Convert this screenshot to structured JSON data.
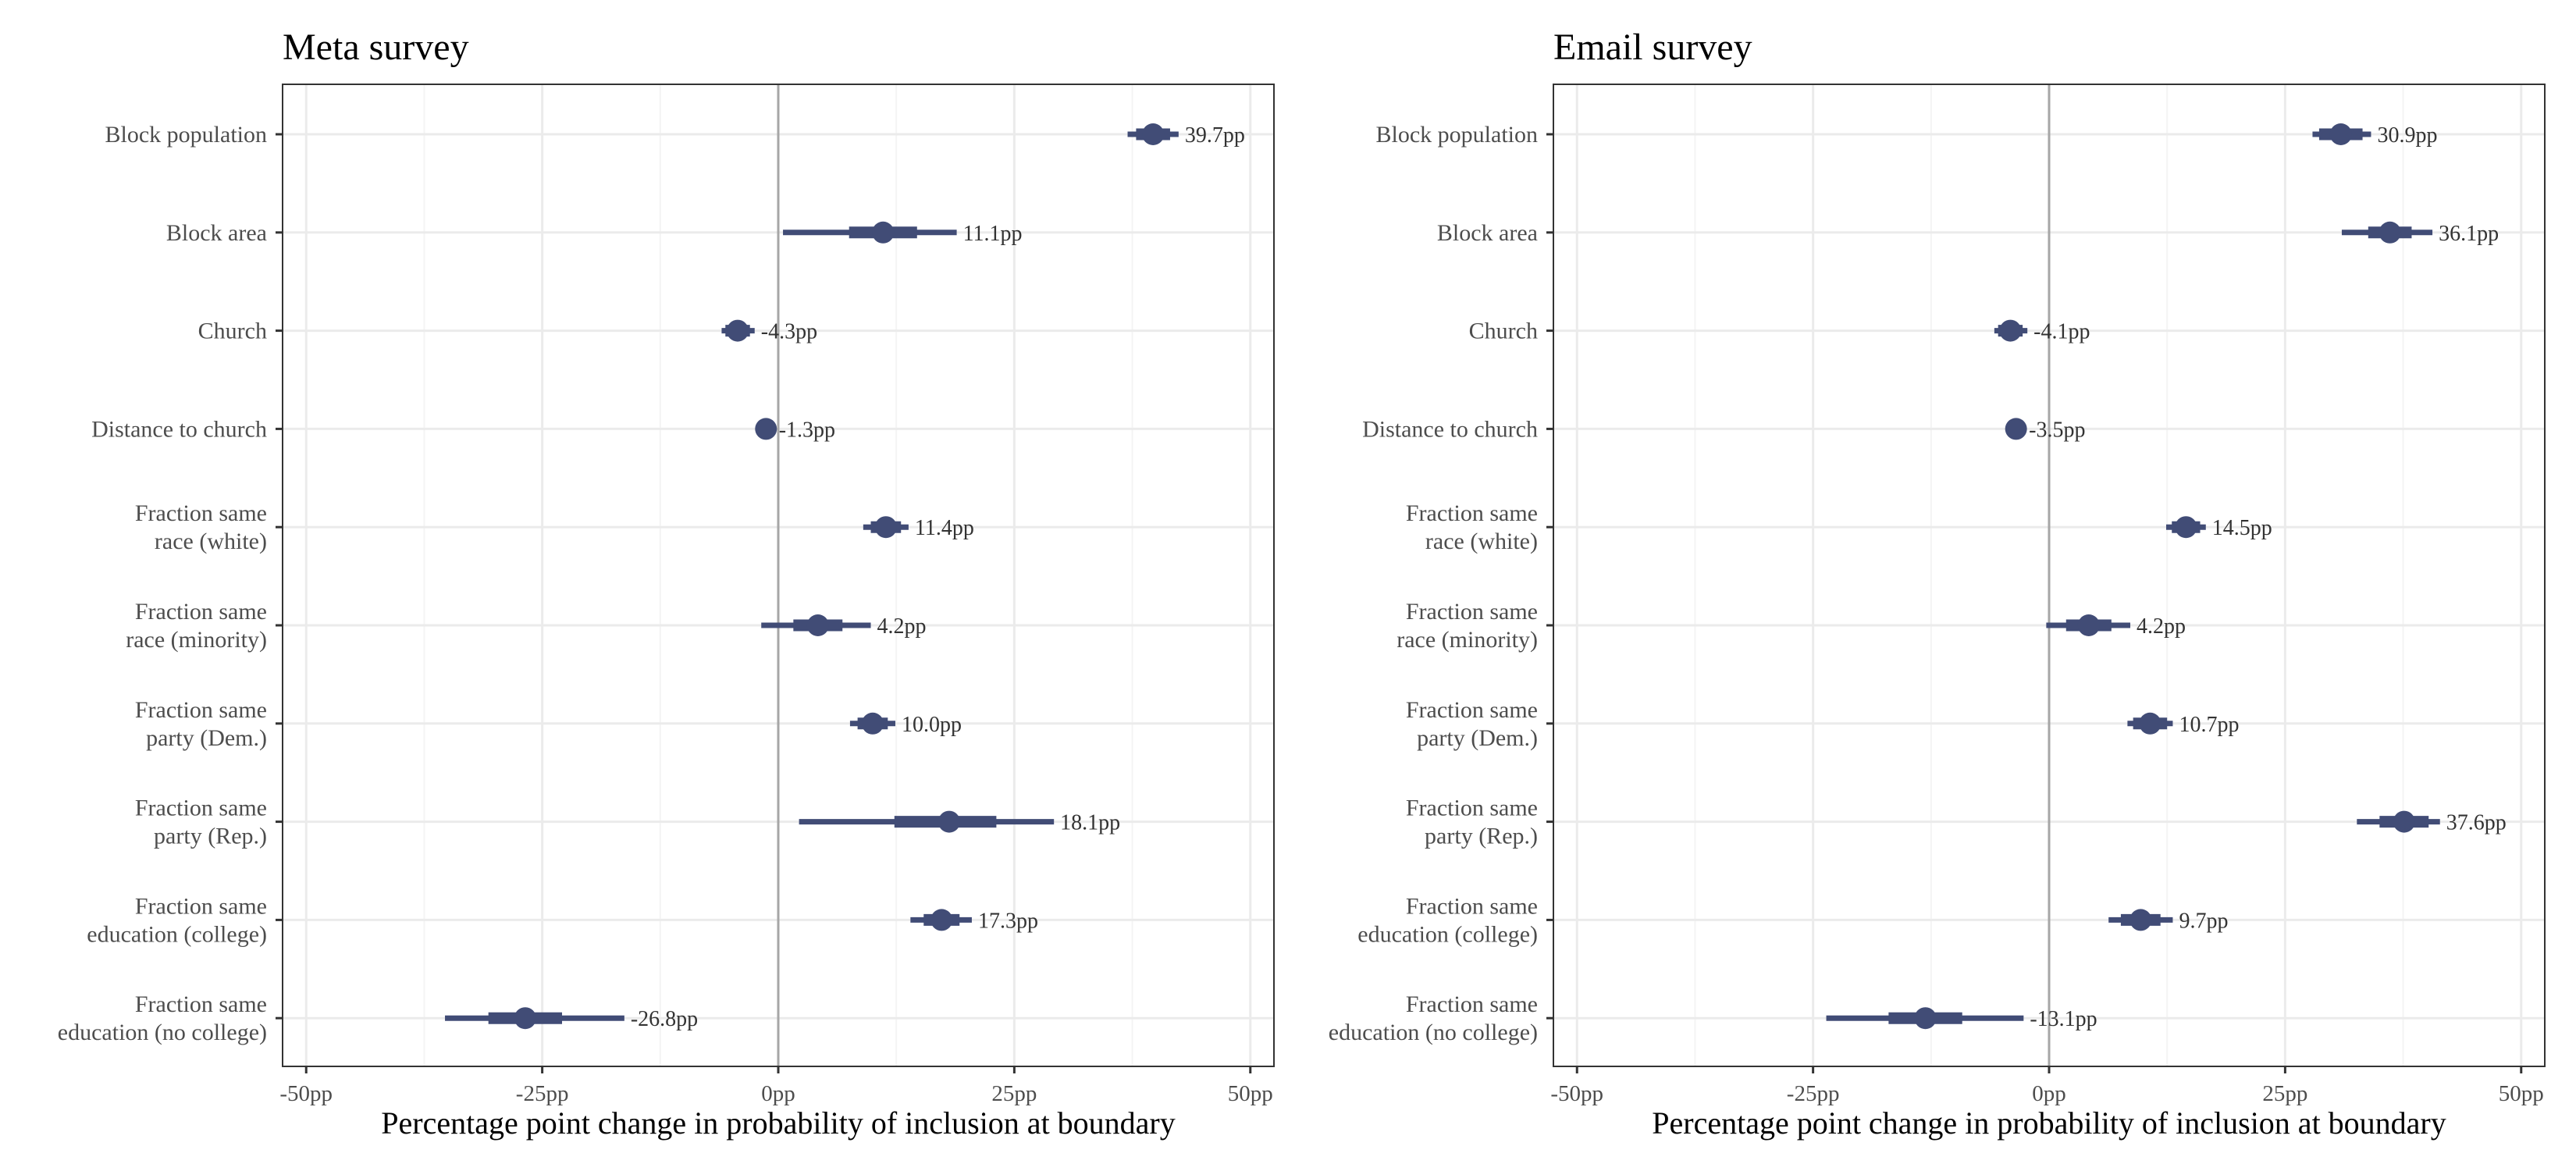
{
  "chart_data": [
    {
      "type": "dot-and-whisker",
      "title": "Meta survey",
      "xlabel": "Percentage point change in probability of inclusion at boundary",
      "xlim": [
        -52.5,
        52.5
      ],
      "xticks": [
        -50,
        -25,
        0,
        25,
        50
      ],
      "xtick_labels": [
        "-50pp",
        "-25pp",
        "0pp",
        "25pp",
        "50pp"
      ],
      "grid": true,
      "rows": [
        {
          "label": [
            "Block population"
          ],
          "estimate": 39.7,
          "ci_inner": [
            37.9,
            41.5
          ],
          "ci_outer": [
            37.0,
            42.4
          ],
          "value_label": "39.7pp"
        },
        {
          "label": [
            "Block area"
          ],
          "estimate": 11.1,
          "ci_inner": [
            7.5,
            14.7
          ],
          "ci_outer": [
            0.5,
            18.9
          ],
          "value_label": "11.1pp"
        },
        {
          "label": [
            "Church"
          ],
          "estimate": -4.3,
          "ci_inner": [
            -5.6,
            -3.0
          ],
          "ci_outer": [
            -6.0,
            -2.5
          ],
          "value_label": "-4.3pp"
        },
        {
          "label": [
            "Distance to church"
          ],
          "estimate": -1.3,
          "ci_inner": [
            -1.8,
            -0.8
          ],
          "ci_outer": [
            -2.0,
            -0.6
          ],
          "value_label": "-1.3pp"
        },
        {
          "label": [
            "Fraction same",
            "race (white)"
          ],
          "estimate": 11.4,
          "ci_inner": [
            9.8,
            13.0
          ],
          "ci_outer": [
            9.0,
            13.8
          ],
          "value_label": "11.4pp"
        },
        {
          "label": [
            "Fraction same",
            "race (minority)"
          ],
          "estimate": 4.2,
          "ci_inner": [
            1.6,
            6.8
          ],
          "ci_outer": [
            -1.8,
            9.8
          ],
          "value_label": "4.2pp"
        },
        {
          "label": [
            "Fraction same",
            "party (Dem.)"
          ],
          "estimate": 10.0,
          "ci_inner": [
            8.4,
            11.6
          ],
          "ci_outer": [
            7.6,
            12.4
          ],
          "value_label": "10.0pp"
        },
        {
          "label": [
            "Fraction same",
            "party (Rep.)"
          ],
          "estimate": 18.1,
          "ci_inner": [
            12.3,
            23.1
          ],
          "ci_outer": [
            2.2,
            29.2
          ],
          "value_label": "18.1pp"
        },
        {
          "label": [
            "Fraction same",
            "education (college)"
          ],
          "estimate": 17.3,
          "ci_inner": [
            15.4,
            19.2
          ],
          "ci_outer": [
            14.0,
            20.5
          ],
          "value_label": "17.3pp"
        },
        {
          "label": [
            "Fraction same",
            "education (no college)"
          ],
          "estimate": -26.8,
          "ci_inner": [
            -30.7,
            -22.9
          ],
          "ci_outer": [
            -35.3,
            -16.3
          ],
          "value_label": "-26.8pp"
        }
      ]
    },
    {
      "type": "dot-and-whisker",
      "title": "Email survey",
      "xlabel": "Percentage point change in probability of inclusion at boundary",
      "xlim": [
        -52.5,
        52.5
      ],
      "xticks": [
        -50,
        -25,
        0,
        25,
        50
      ],
      "xtick_labels": [
        "-50pp",
        "-25pp",
        "0pp",
        "25pp",
        "50pp"
      ],
      "grid": true,
      "rows": [
        {
          "label": [
            "Block population"
          ],
          "estimate": 30.9,
          "ci_inner": [
            28.6,
            33.2
          ],
          "ci_outer": [
            27.9,
            34.1
          ],
          "value_label": "30.9pp"
        },
        {
          "label": [
            "Block area"
          ],
          "estimate": 36.1,
          "ci_inner": [
            33.8,
            38.4
          ],
          "ci_outer": [
            31.0,
            40.6
          ],
          "value_label": "36.1pp"
        },
        {
          "label": [
            "Church"
          ],
          "estimate": -4.1,
          "ci_inner": [
            -5.4,
            -2.8
          ],
          "ci_outer": [
            -5.8,
            -2.3
          ],
          "value_label": "-4.1pp"
        },
        {
          "label": [
            "Distance to church"
          ],
          "estimate": -3.5,
          "ci_inner": [
            -4.0,
            -3.0
          ],
          "ci_outer": [
            -4.2,
            -2.8
          ],
          "value_label": "-3.5pp"
        },
        {
          "label": [
            "Fraction same",
            "race (white)"
          ],
          "estimate": 14.5,
          "ci_inner": [
            13.0,
            16.0
          ],
          "ci_outer": [
            12.4,
            16.6
          ],
          "value_label": "14.5pp"
        },
        {
          "label": [
            "Fraction same",
            "race (minority)"
          ],
          "estimate": 4.2,
          "ci_inner": [
            1.8,
            6.6
          ],
          "ci_outer": [
            -0.3,
            8.6
          ],
          "value_label": "4.2pp"
        },
        {
          "label": [
            "Fraction same",
            "party (Dem.)"
          ],
          "estimate": 10.7,
          "ci_inner": [
            8.9,
            12.5
          ],
          "ci_outer": [
            8.3,
            13.1
          ],
          "value_label": "10.7pp"
        },
        {
          "label": [
            "Fraction same",
            "party (Rep.)"
          ],
          "estimate": 37.6,
          "ci_inner": [
            35.0,
            40.2
          ],
          "ci_outer": [
            32.6,
            41.4
          ],
          "value_label": "37.6pp"
        },
        {
          "label": [
            "Fraction same",
            "education (college)"
          ],
          "estimate": 9.7,
          "ci_inner": [
            7.6,
            11.8
          ],
          "ci_outer": [
            6.3,
            13.1
          ],
          "value_label": "9.7pp"
        },
        {
          "label": [
            "Fraction same",
            "education (no college)"
          ],
          "estimate": -13.1,
          "ci_inner": [
            -17.0,
            -9.2
          ],
          "ci_outer": [
            -23.6,
            -2.7
          ],
          "value_label": "-13.1pp"
        }
      ]
    }
  ],
  "colors": {
    "marker": "#414c76",
    "panel_border": "#333333",
    "grid_major": "#ebebeb",
    "grid_minor": "#f4f4f4",
    "zero_line": "#a6a6a6"
  }
}
